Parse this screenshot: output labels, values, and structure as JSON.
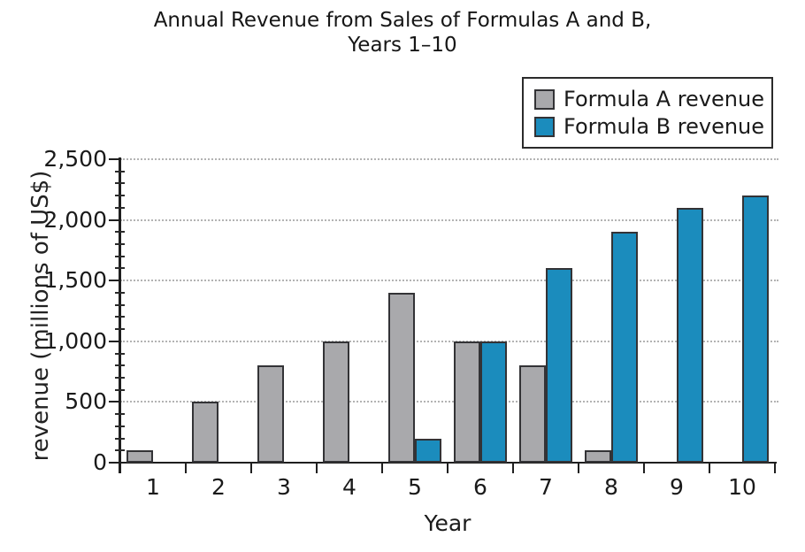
{
  "title": {
    "line1": "Annual Revenue from Sales of Formulas A and B,",
    "line2": "Years 1–10"
  },
  "chart_data": {
    "type": "bar",
    "title": "Annual Revenue from Sales of Formulas A and B, Years 1–10",
    "xlabel": "Year",
    "ylabel": "revenue (millions of US$)",
    "categories": [
      "1",
      "2",
      "3",
      "4",
      "5",
      "6",
      "7",
      "8",
      "9",
      "10"
    ],
    "series": [
      {
        "name": "Formula A revenue",
        "color": "#a9a9ac",
        "values": [
          100,
          500,
          800,
          1000,
          1400,
          1000,
          800,
          100,
          0,
          0
        ]
      },
      {
        "name": "Formula B revenue",
        "color": "#1b8cbd",
        "values": [
          0,
          0,
          0,
          0,
          200,
          1000,
          1600,
          1900,
          2100,
          2200
        ]
      }
    ],
    "ylim": [
      0,
      2500
    ],
    "ytick_interval": 500,
    "yminor_tick_interval": 100,
    "ytick_labels": [
      "0",
      "500",
      "1,000",
      "1,500",
      "2,000",
      "2,500"
    ],
    "grid": "horizontal dotted at major ticks",
    "legend_position": "top-right"
  },
  "colors": {
    "axis": "#1f1f1f",
    "bar_border": "#333336",
    "gridline": "#b3b3b3",
    "formula_a_fill": "#a9a9ac",
    "formula_b_fill": "#1b8cbd",
    "legend_border": "#2b2b2b",
    "background": "#ffffff"
  }
}
